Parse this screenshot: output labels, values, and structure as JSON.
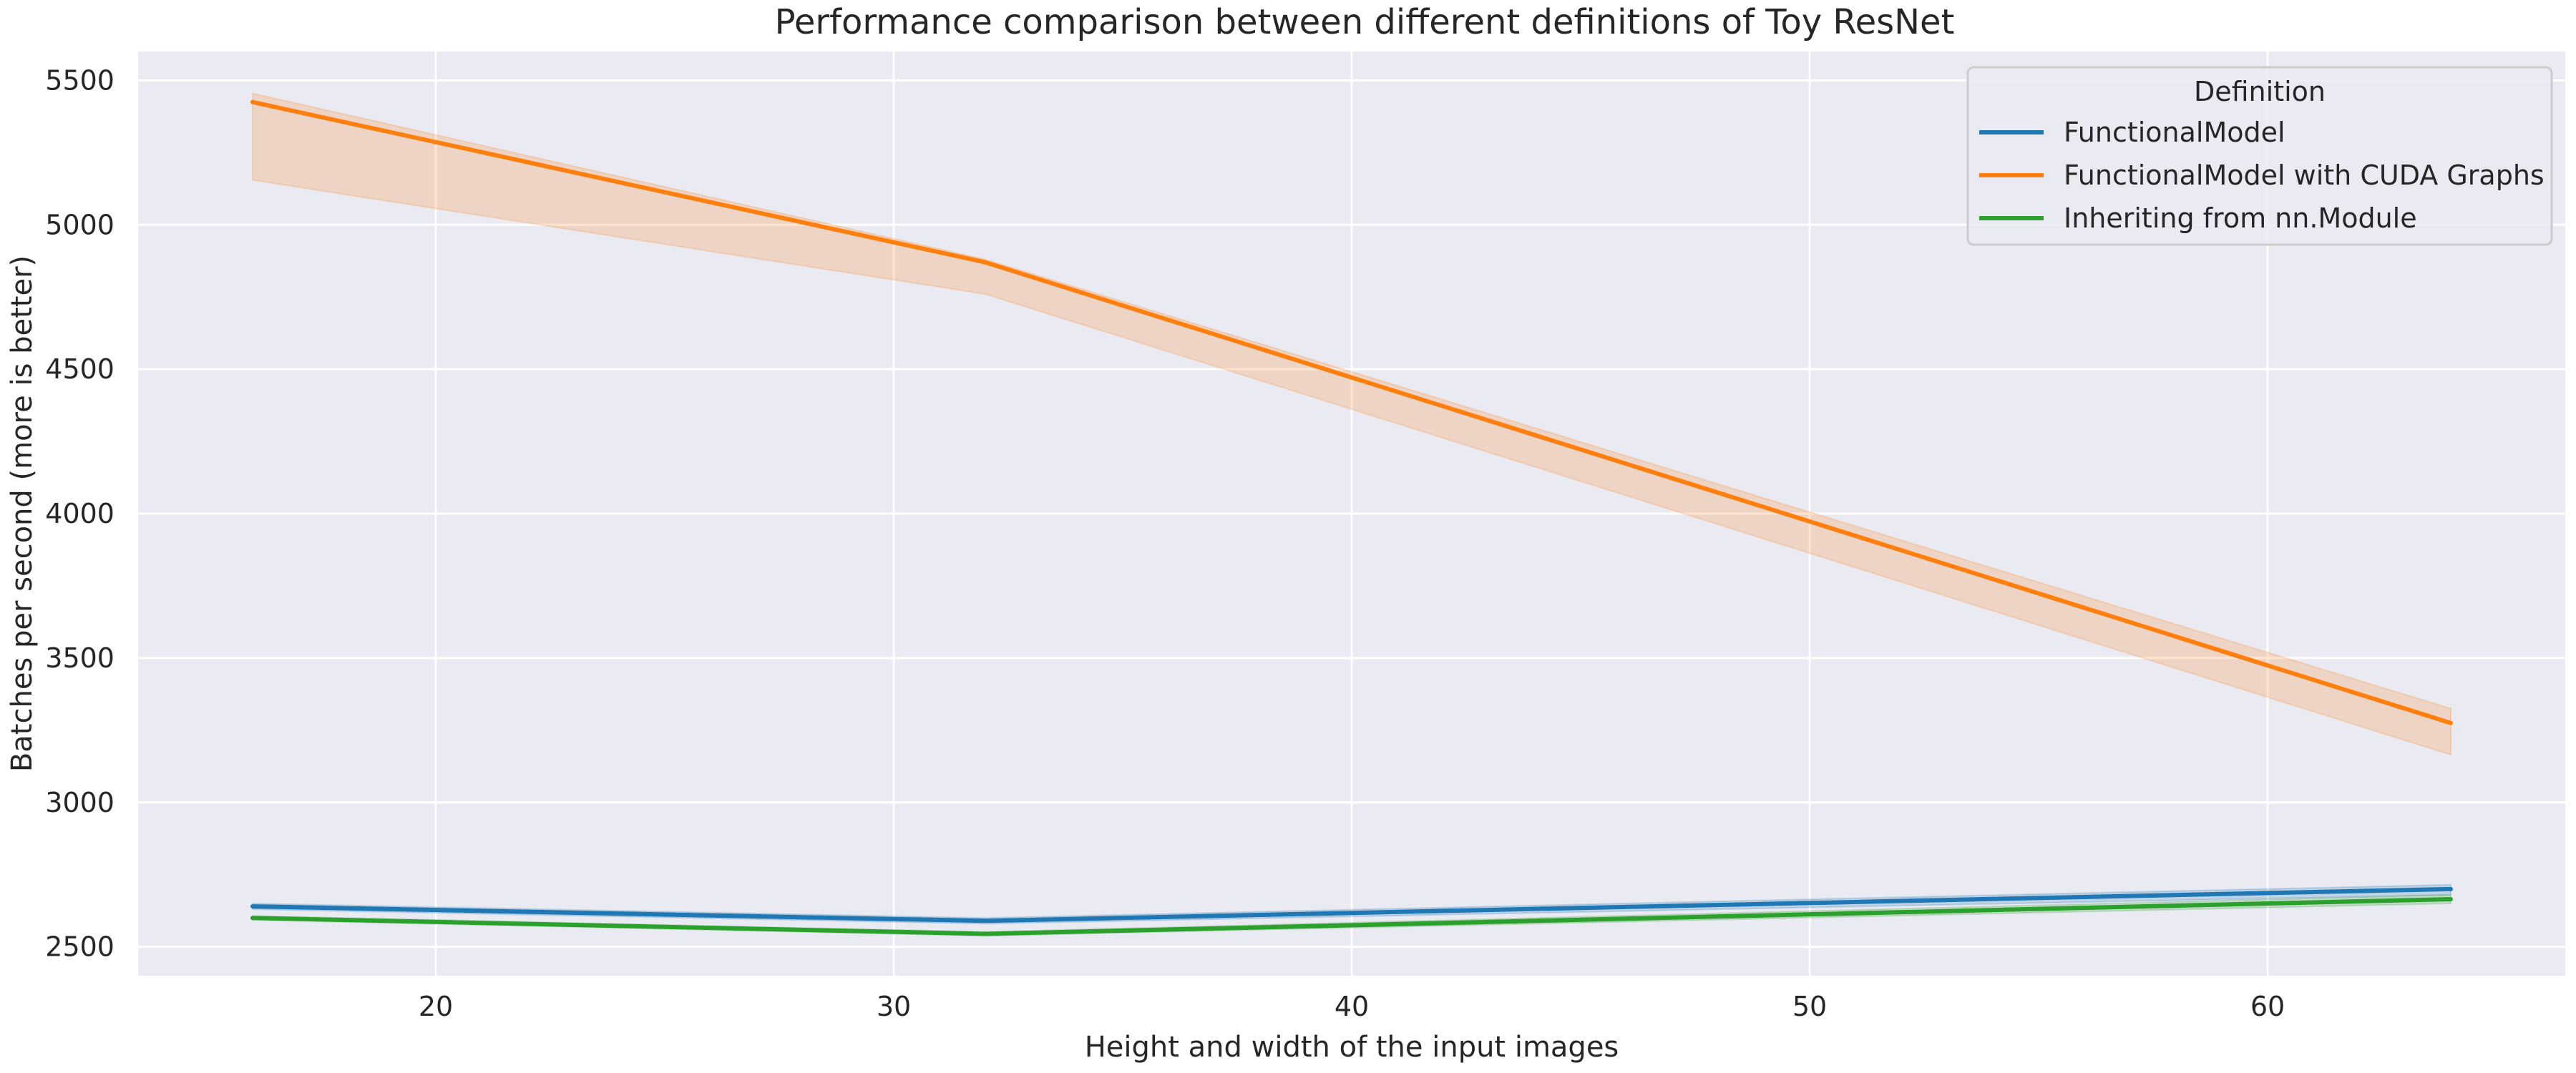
{
  "chart_data": {
    "type": "line",
    "title": "Performance comparison between different definitions of Toy ResNet",
    "xlabel": "Height and width of the input images",
    "ylabel": "Batches per second (more is better)",
    "x": [
      16,
      32,
      64
    ],
    "xlim": [
      13.5,
      66.5
    ],
    "ylim": [
      2400,
      5600
    ],
    "x_ticks": [
      20,
      30,
      40,
      50,
      60
    ],
    "y_ticks": [
      2500,
      3000,
      3500,
      4000,
      4500,
      5000,
      5500
    ],
    "grid": true,
    "legend": {
      "title": "Definition",
      "placement": "top-right"
    },
    "series": [
      {
        "name": "FunctionalModel",
        "color": "#1f77b4",
        "values": [
          2640,
          2590,
          2700
        ],
        "ci_lower": [
          2630,
          2580,
          2680
        ],
        "ci_upper": [
          2650,
          2600,
          2715
        ]
      },
      {
        "name": "FunctionalModel with CUDA Graphs",
        "color": "#ff7f0e",
        "values": [
          5425,
          4870,
          3275
        ],
        "ci_lower": [
          5155,
          4760,
          3165
        ],
        "ci_upper": [
          5455,
          4880,
          3325
        ]
      },
      {
        "name": "Inheriting from nn.Module",
        "color": "#2ca02c",
        "values": [
          2600,
          2545,
          2665
        ],
        "ci_lower": [
          2593,
          2538,
          2650
        ],
        "ci_upper": [
          2607,
          2552,
          2680
        ]
      }
    ]
  }
}
